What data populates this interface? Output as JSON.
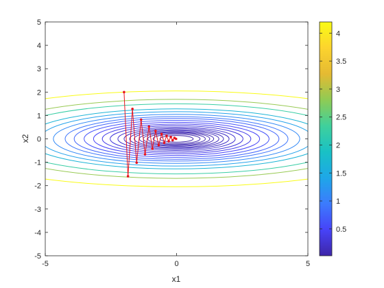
{
  "chart_data": {
    "type": "contour",
    "title": "",
    "xlabel": "x1",
    "ylabel": "x2",
    "xlim": [
      -5,
      5
    ],
    "ylim": [
      -5,
      5
    ],
    "x_ticks": [
      "-5",
      "0",
      "5"
    ],
    "y_ticks": [
      "-5",
      "-4",
      "-3",
      "-2",
      "-1",
      "0",
      "1",
      "2",
      "3",
      "4",
      "5"
    ],
    "colorbar_ticks": [
      "0.5",
      "1",
      "1.5",
      "2",
      "2.5",
      "3",
      "3.5",
      "4"
    ],
    "colorbar_range": [
      0.02,
      4.2
    ],
    "function": "f(x1, x2) = 0.05*x1^2 + x2^2",
    "contour_levels": [
      0.02,
      0.04,
      0.06,
      0.08,
      0.1,
      0.13,
      0.16,
      0.2,
      0.25,
      0.32,
      0.4,
      0.5,
      0.62,
      0.76,
      0.9,
      1.1,
      1.35,
      1.65,
      2.25,
      2.85,
      4.2
    ],
    "colormap": [
      "#3e26a8",
      "#4743f8",
      "#3c7bfd",
      "#1ea7e8",
      "#19c1c5",
      "#3fd09c",
      "#8fcb54",
      "#e5ba32",
      "#fcd42e",
      "#f9fb14"
    ],
    "path_color": "#e8121c",
    "grid": false,
    "series": [
      {
        "x": [
          -2.0,
          -1.85,
          -1.68,
          -1.52,
          -1.35,
          -1.2,
          -1.05,
          -0.92,
          -0.8,
          -0.68,
          -0.57,
          -0.47,
          -0.38,
          -0.3,
          -0.22,
          -0.15,
          -0.08,
          -0.02
        ],
        "y": [
          2.0,
          -1.6,
          1.28,
          -1.02,
          0.82,
          -0.66,
          0.52,
          -0.42,
          0.34,
          -0.27,
          0.21,
          -0.17,
          0.13,
          -0.1,
          0.08,
          -0.06,
          0.04,
          0.0
        ]
      }
    ]
  }
}
